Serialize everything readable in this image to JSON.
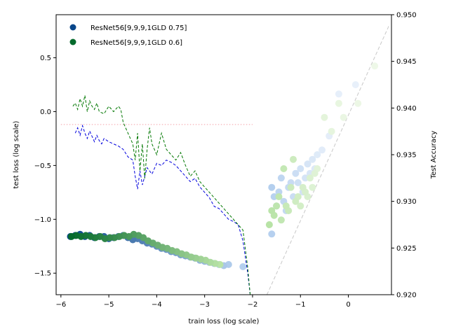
{
  "chart_data": {
    "type": "scatter",
    "title": "",
    "xlabel": "train loss (log scale)",
    "ylabel": "test loss (log scale)",
    "y2label": "Test Accuracy",
    "xlim": [
      -6.1,
      0.9
    ],
    "ylim": [
      -1.7,
      0.9
    ],
    "y2lim": [
      0.92,
      0.95
    ],
    "x_ticks": [
      -6,
      -5,
      -4,
      -3,
      -2,
      -1,
      0
    ],
    "x_tick_labels": [
      "−6",
      "−5",
      "−4",
      "−3",
      "−2",
      "−1",
      "0"
    ],
    "y_ticks": [
      -1.5,
      -1.0,
      -0.5,
      0.0,
      0.5
    ],
    "y_tick_labels": [
      "−1.5",
      "−1.0",
      "−0.5",
      "0.0",
      "0.5"
    ],
    "y2_ticks": [
      0.92,
      0.925,
      0.93,
      0.935,
      0.94,
      0.945,
      0.95
    ],
    "y2_tick_labels": [
      "0.920",
      "0.925",
      "0.930",
      "0.935",
      "0.940",
      "0.945",
      "0.950"
    ],
    "legend": {
      "placement": "top-left",
      "entries": [
        {
          "label": "ResNet56[9,9,9,1GLD 0.75]",
          "color": "#08468a"
        },
        {
          "label": "ResNet56[9,9,9,1GLD 0.6]",
          "color": "#056a2c"
        }
      ]
    },
    "reference_lines": [
      {
        "kind": "horizontal",
        "y": -0.12,
        "x_range": [
          -6.0,
          -2.0
        ],
        "color": "#f4a0a8",
        "style": "dotted"
      },
      {
        "kind": "diagonal",
        "from": [
          -1.7,
          -1.7
        ],
        "to": [
          0.85,
          0.8
        ],
        "color": "#c8c8c8",
        "style": "dashed"
      }
    ],
    "series": [
      {
        "name": "ResNet56[9,9,9,1GLD 0.75]",
        "kind": "test-loss-trajectory",
        "color": "#0000dd",
        "x": [
          -5.7,
          -5.65,
          -5.6,
          -5.55,
          -5.5,
          -5.45,
          -5.4,
          -5.35,
          -5.3,
          -5.25,
          -5.2,
          -5.15,
          -5.1,
          -5.0,
          -4.9,
          -4.8,
          -4.7,
          -4.6,
          -4.5,
          -4.45,
          -4.4,
          -4.35,
          -4.3,
          -4.25,
          -4.2,
          -4.1,
          -4.0,
          -3.9,
          -3.8,
          -3.7,
          -3.6,
          -3.5,
          -3.4,
          -3.3,
          -3.2,
          -3.1,
          -3.0,
          -2.9,
          -2.8,
          -2.7,
          -2.6,
          -2.5,
          -2.4,
          -2.3,
          -2.2,
          -2.1,
          -2.05
        ],
        "y": [
          -0.2,
          -0.15,
          -0.22,
          -0.13,
          -0.2,
          -0.25,
          -0.18,
          -0.23,
          -0.28,
          -0.22,
          -0.27,
          -0.3,
          -0.25,
          -0.28,
          -0.3,
          -0.32,
          -0.35,
          -0.42,
          -0.45,
          -0.6,
          -0.72,
          -0.55,
          -0.68,
          -0.6,
          -0.52,
          -0.58,
          -0.48,
          -0.5,
          -0.45,
          -0.47,
          -0.5,
          -0.55,
          -0.6,
          -0.65,
          -0.62,
          -0.7,
          -0.75,
          -0.8,
          -0.88,
          -0.9,
          -0.95,
          -1.0,
          -1.02,
          -1.05,
          -1.2,
          -1.5,
          -1.7
        ]
      },
      {
        "name": "ResNet56[9,9,9,1GLD 0.6]",
        "kind": "test-loss-trajectory",
        "color": "#007700",
        "x": [
          -5.75,
          -5.7,
          -5.65,
          -5.6,
          -5.55,
          -5.5,
          -5.45,
          -5.4,
          -5.35,
          -5.3,
          -5.25,
          -5.2,
          -5.1,
          -5.0,
          -4.9,
          -4.8,
          -4.75,
          -4.7,
          -4.6,
          -4.5,
          -4.45,
          -4.4,
          -4.35,
          -4.3,
          -4.25,
          -4.2,
          -4.15,
          -4.1,
          -4.0,
          -3.9,
          -3.8,
          -3.7,
          -3.6,
          -3.5,
          -3.4,
          -3.3,
          -3.2,
          -3.1,
          -3.0,
          -2.9,
          -2.8,
          -2.7,
          -2.6,
          -2.5,
          -2.4,
          -2.3,
          -2.2,
          -2.1,
          -2.05
        ],
        "y": [
          0.05,
          0.08,
          0.02,
          0.12,
          0.05,
          0.15,
          0.0,
          0.1,
          0.05,
          0.02,
          0.08,
          0.0,
          -0.02,
          0.05,
          0.0,
          0.05,
          0.02,
          -0.1,
          -0.2,
          -0.3,
          -0.45,
          -0.2,
          -0.55,
          -0.3,
          -0.62,
          -0.35,
          -0.15,
          -0.3,
          -0.4,
          -0.2,
          -0.35,
          -0.4,
          -0.45,
          -0.38,
          -0.5,
          -0.6,
          -0.55,
          -0.65,
          -0.7,
          -0.75,
          -0.8,
          -0.85,
          -0.9,
          -0.95,
          -1.0,
          -1.05,
          -1.1,
          -1.45,
          -1.7
        ]
      },
      {
        "name": "ResNet56[9,9,9,1GLD 0.75]",
        "kind": "test-loss-points",
        "color_ramp": [
          "#08468a",
          "#b4cfee"
        ],
        "x": [
          -5.8,
          -5.7,
          -5.6,
          -5.5,
          -5.4,
          -5.3,
          -5.2,
          -5.1,
          -5.0,
          -4.9,
          -4.8,
          -4.7,
          -4.6,
          -4.5,
          -4.4,
          -4.3,
          -4.2,
          -4.1,
          -4.0,
          -3.9,
          -3.8,
          -3.7,
          -3.6,
          -3.5,
          -3.4,
          -3.3,
          -3.2,
          -3.1,
          -3.0,
          -2.9,
          -2.8,
          -2.7,
          -2.6,
          -2.5,
          -2.2
        ],
        "y": [
          -1.16,
          -1.15,
          -1.14,
          -1.16,
          -1.15,
          -1.17,
          -1.16,
          -1.16,
          -1.18,
          -1.17,
          -1.16,
          -1.15,
          -1.17,
          -1.19,
          -1.18,
          -1.2,
          -1.22,
          -1.23,
          -1.25,
          -1.27,
          -1.28,
          -1.3,
          -1.31,
          -1.33,
          -1.34,
          -1.35,
          -1.36,
          -1.38,
          -1.39,
          -1.4,
          -1.41,
          -1.42,
          -1.43,
          -1.42,
          -1.44
        ]
      },
      {
        "name": "ResNet56[9,9,9,1GLD 0.6]",
        "kind": "test-loss-points",
        "color_ramp": [
          "#056a2c",
          "#b8e3a6"
        ],
        "x": [
          -5.78,
          -5.68,
          -5.58,
          -5.48,
          -5.38,
          -5.28,
          -5.18,
          -5.08,
          -4.98,
          -4.88,
          -4.78,
          -4.68,
          -4.58,
          -4.48,
          -4.38,
          -4.28,
          -4.18,
          -4.08,
          -3.98,
          -3.88,
          -3.78,
          -3.68,
          -3.58,
          -3.48,
          -3.38,
          -3.28,
          -3.18,
          -3.08,
          -2.98,
          -2.88,
          -2.78,
          -2.68
        ],
        "y": [
          -1.16,
          -1.15,
          -1.16,
          -1.15,
          -1.16,
          -1.17,
          -1.16,
          -1.18,
          -1.17,
          -1.17,
          -1.16,
          -1.15,
          -1.16,
          -1.14,
          -1.15,
          -1.17,
          -1.2,
          -1.22,
          -1.24,
          -1.26,
          -1.27,
          -1.29,
          -1.3,
          -1.32,
          -1.33,
          -1.35,
          -1.36,
          -1.37,
          -1.38,
          -1.4,
          -1.41,
          -1.42
        ]
      },
      {
        "name": "ResNet56[9,9,9,1GLD 0.75]",
        "kind": "test-accuracy-points",
        "axis": "y2",
        "color_ramp": [
          "#b4cfee",
          "#e8f0fa"
        ],
        "x": [
          -1.6,
          -1.6,
          -1.55,
          -1.5,
          -1.45,
          -1.4,
          -1.35,
          -1.3,
          -1.25,
          -1.2,
          -1.15,
          -1.1,
          -1.05,
          -1.0,
          -0.95,
          -0.9,
          -0.85,
          -0.8,
          -0.75,
          -0.7,
          -0.65,
          -0.55,
          -0.4,
          -0.2,
          0.15
        ],
        "y": [
          0.9315,
          0.9265,
          0.9305,
          0.9295,
          0.931,
          0.9325,
          0.93,
          0.929,
          0.9315,
          0.932,
          0.9305,
          0.933,
          0.932,
          0.9335,
          0.931,
          0.9325,
          0.934,
          0.933,
          0.9345,
          0.9335,
          0.935,
          0.9355,
          0.937,
          0.9415,
          0.9425
        ]
      },
      {
        "name": "ResNet56[9,9,9,1GLD 0.6]",
        "kind": "test-accuracy-points",
        "axis": "y2",
        "color_ramp": [
          "#b8e3a6",
          "#eef8e8"
        ],
        "x": [
          -1.65,
          -1.6,
          -1.55,
          -1.5,
          -1.45,
          -1.4,
          -1.35,
          -1.3,
          -1.25,
          -1.2,
          -1.15,
          -1.1,
          -1.05,
          -1.0,
          -0.95,
          -0.9,
          -0.85,
          -0.8,
          -0.75,
          -0.7,
          -0.65,
          -0.5,
          -0.35,
          -0.2,
          -0.1,
          0.2,
          0.55
        ],
        "y": [
          0.9275,
          0.929,
          0.9285,
          0.9295,
          0.9305,
          0.928,
          0.9335,
          0.9295,
          0.929,
          0.9315,
          0.9345,
          0.93,
          0.9305,
          0.9295,
          0.9315,
          0.931,
          0.9305,
          0.9325,
          0.9315,
          0.933,
          0.9335,
          0.939,
          0.9375,
          0.9405,
          0.939,
          0.9405,
          0.9445
        ]
      }
    ]
  }
}
